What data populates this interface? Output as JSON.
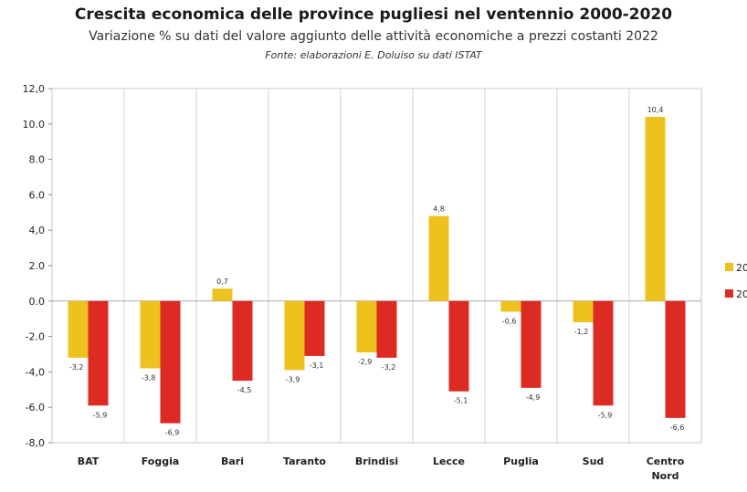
{
  "chart_data": {
    "type": "bar",
    "title": "Crescita economica delle province pugliesi nel ventennio 2000-2020",
    "subtitle": "Variazione % su dati del valore aggiunto delle attività economiche a prezzi costanti 2022",
    "source": "Fonte: elaborazioni E. Doluiso su dati ISTAT",
    "categories": [
      "BAT",
      "Foggia",
      "Bari",
      "Taranto",
      "Brindisi",
      "Lecce",
      "Puglia",
      "Sud",
      "Centro Nord"
    ],
    "series": [
      {
        "name": "20",
        "color": "#EDC21E",
        "values": [
          -3.2,
          -3.8,
          0.7,
          -3.9,
          -2.9,
          4.8,
          -0.6,
          -1.2,
          10.4
        ]
      },
      {
        "name": "20",
        "color": "#DD2A22",
        "values": [
          -5.9,
          -6.9,
          -4.5,
          -3.1,
          -3.2,
          -5.1,
          -4.9,
          -5.9,
          -6.6
        ]
      }
    ],
    "data_labels": [
      [
        "-3,2",
        "-3,8",
        "0,7",
        "-3,9",
        "-2,9",
        "4,8",
        "-0,6",
        "-1,2",
        "10,4"
      ],
      [
        "-5,9",
        "-6,9",
        "-4,5",
        "-3,1",
        "-3,2",
        "-5,1",
        "-4,9",
        "-5,9",
        "-6,6"
      ]
    ],
    "yticks": [
      "12,0",
      "10.0",
      "8.0",
      "6.0",
      "4,0",
      "2.0",
      "0.0",
      "-2.0",
      "-4,0",
      "-6.0",
      "-8,0"
    ],
    "ylim": [
      -8,
      12
    ],
    "grid": "vertical lines between categories",
    "legend_position": "right (partially cropped)"
  }
}
